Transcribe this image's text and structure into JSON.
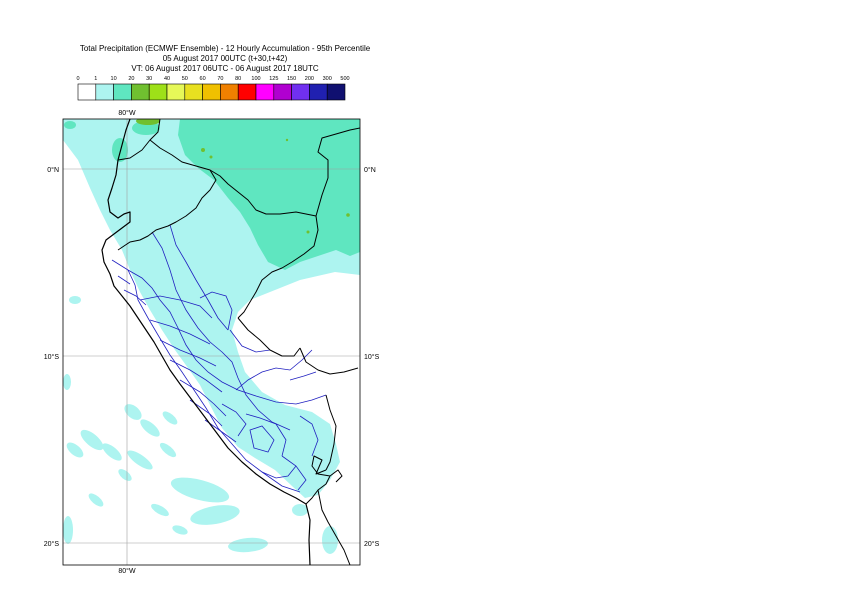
{
  "title": {
    "line1": "Total Precipitation (ECMWF Ensemble) - 12 Hourly Accumulation - 95th Percentile",
    "line2": "05 August 2017 00UTC (t+30,t+42)",
    "line3": "VT: 06 August 2017 06UTC - 06 August 2017 18UTC"
  },
  "legend": {
    "labels": [
      "0",
      "1",
      "10",
      "20",
      "30",
      "40",
      "50",
      "60",
      "70",
      "80",
      "100",
      "125",
      "150",
      "200",
      "300",
      "500"
    ],
    "colors": [
      "#ffffff",
      "#adf4f0",
      "#5fe6c0",
      "#70c030",
      "#9ee018",
      "#e6f858",
      "#e8e020",
      "#f0c000",
      "#f08000",
      "#ff0000",
      "#ff00ff",
      "#b000d0",
      "#7030f0",
      "#2020b0",
      "#101070"
    ]
  },
  "axes": {
    "lon_top": "80°W",
    "lon_bottom": "80°W",
    "lat_labels": [
      "0°N",
      "10°S",
      "20°S"
    ]
  },
  "colors": {
    "light_precip": "#adf4f0",
    "medium_precip": "#5fe6c0",
    "heavy_precip": "#70c030",
    "coast": "#000000",
    "borders": "#2020c0",
    "grid": "#a0a0a0"
  }
}
